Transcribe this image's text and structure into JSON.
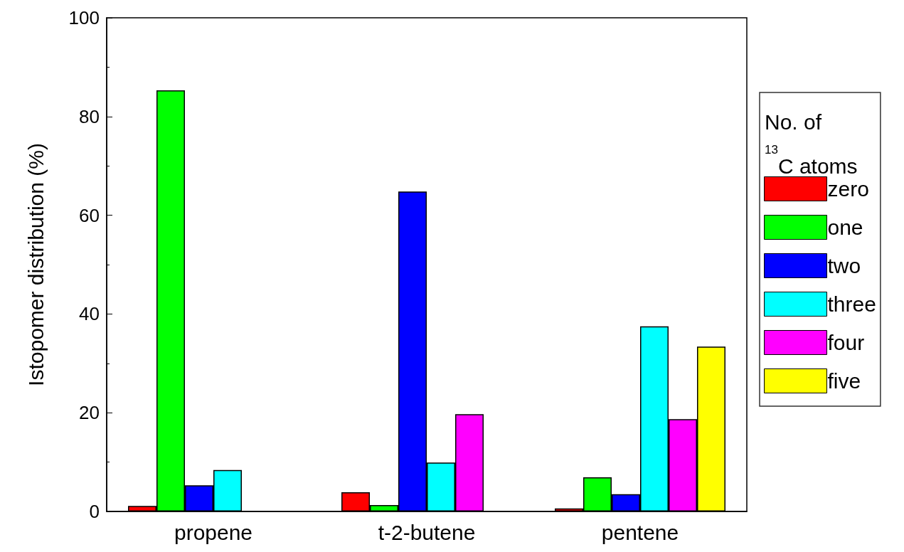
{
  "chart_data": {
    "type": "bar",
    "ylabel": "Istopomer distribution (%)",
    "legend_title": "No. of $^{13}$C atoms",
    "categories": [
      "propene",
      "t-2-butene",
      "pentene"
    ],
    "series": [
      {
        "name": "zero",
        "color": "#ff0000",
        "values": [
          1.1,
          3.9,
          0.6
        ]
      },
      {
        "name": "one",
        "color": "#00ff00",
        "values": [
          85.3,
          1.3,
          6.9
        ]
      },
      {
        "name": "two",
        "color": "#0000ff",
        "values": [
          5.3,
          64.8,
          3.5
        ]
      },
      {
        "name": "three",
        "color": "#00ffff",
        "values": [
          8.4,
          9.9,
          37.5
        ]
      },
      {
        "name": "four",
        "color": "#ff00ff",
        "values": [
          null,
          19.7,
          18.7
        ]
      },
      {
        "name": "five",
        "color": "#ffff00",
        "values": [
          null,
          null,
          33.4
        ]
      }
    ],
    "ylim": [
      0,
      100
    ],
    "yticks": [
      0,
      20,
      40,
      60,
      80,
      100
    ],
    "grid": false,
    "legend": "right"
  }
}
